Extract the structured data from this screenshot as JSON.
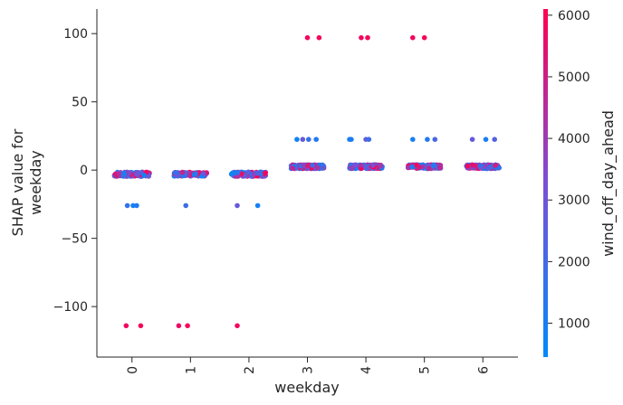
{
  "chart_data": {
    "type": "scatter",
    "title": "",
    "xlabel": "weekday",
    "ylabel_lines": [
      "SHAP value for",
      "weekday"
    ],
    "colorbar_label": "wind_off_day_ahead",
    "xlim": [
      -0.6,
      6.6
    ],
    "ylim": [
      -137,
      118
    ],
    "xticks": [
      0,
      1,
      2,
      3,
      4,
      5,
      6
    ],
    "xtick_labels": [
      "0",
      "1",
      "2",
      "3",
      "4",
      "5",
      "6"
    ],
    "yticks": [
      100,
      50,
      0,
      -50,
      -100
    ],
    "ytick_labels": [
      "100",
      "50",
      "0",
      "−50",
      "−100"
    ],
    "colorbar_ticks": [
      1000,
      2000,
      3000,
      4000,
      5000,
      6000
    ],
    "colorbar_tick_labels": [
      "1000",
      "2000",
      "3000",
      "4000",
      "5000",
      "6000"
    ],
    "colorbar_range": [
      450,
      6100
    ],
    "colormap": [
      "#008afb",
      "#7b4fd5",
      "#ff0052"
    ],
    "grid": false,
    "clusters": [
      {
        "x": 0,
        "y": -3,
        "spread": 0.3,
        "yjitter": 1.6,
        "n": 150
      },
      {
        "x": 1,
        "y": -3,
        "spread": 0.28,
        "yjitter": 1.4,
        "n": 150
      },
      {
        "x": 2,
        "y": -3,
        "spread": 0.3,
        "yjitter": 1.6,
        "n": 150
      },
      {
        "x": 3,
        "y": 2.5,
        "spread": 0.28,
        "yjitter": 1.4,
        "n": 160
      },
      {
        "x": 4,
        "y": 2.5,
        "spread": 0.28,
        "yjitter": 1.4,
        "n": 160
      },
      {
        "x": 5,
        "y": 2.5,
        "spread": 0.28,
        "yjitter": 1.4,
        "n": 160
      },
      {
        "x": 6,
        "y": 2.5,
        "spread": 0.28,
        "yjitter": 1.4,
        "n": 160
      }
    ],
    "points": [
      {
        "x": -0.08,
        "y": -26,
        "c": 1600
      },
      {
        "x": 0.02,
        "y": -26,
        "c": 900
      },
      {
        "x": 0.08,
        "y": -26,
        "c": 1200
      },
      {
        "x": -0.1,
        "y": -114,
        "c": 5800
      },
      {
        "x": 0.15,
        "y": -114,
        "c": 5900
      },
      {
        "x": 0.92,
        "y": -26,
        "c": 1900
      },
      {
        "x": 0.8,
        "y": -114,
        "c": 5700
      },
      {
        "x": 0.95,
        "y": -114,
        "c": 5900
      },
      {
        "x": 1.8,
        "y": -26,
        "c": 2800
      },
      {
        "x": 2.15,
        "y": -26,
        "c": 900
      },
      {
        "x": 1.8,
        "y": -114,
        "c": 5800
      },
      {
        "x": 2.82,
        "y": 22.5,
        "c": 800
      },
      {
        "x": 2.92,
        "y": 22.5,
        "c": 2800
      },
      {
        "x": 3.02,
        "y": 22.5,
        "c": 1700
      },
      {
        "x": 3.15,
        "y": 22.5,
        "c": 1200
      },
      {
        "x": 3.0,
        "y": 97,
        "c": 5800
      },
      {
        "x": 3.2,
        "y": 97,
        "c": 5900
      },
      {
        "x": 3.72,
        "y": 22.5,
        "c": 1000
      },
      {
        "x": 3.75,
        "y": 22.5,
        "c": 1100
      },
      {
        "x": 4.0,
        "y": 22.5,
        "c": 2600
      },
      {
        "x": 4.05,
        "y": 22.5,
        "c": 1900
      },
      {
        "x": 3.92,
        "y": 97,
        "c": 5800
      },
      {
        "x": 4.03,
        "y": 97,
        "c": 5900
      },
      {
        "x": 4.8,
        "y": 22.5,
        "c": 1000
      },
      {
        "x": 5.05,
        "y": 22.5,
        "c": 1200
      },
      {
        "x": 5.18,
        "y": 22.5,
        "c": 2200
      },
      {
        "x": 4.8,
        "y": 97,
        "c": 5800
      },
      {
        "x": 5.0,
        "y": 97,
        "c": 5900
      },
      {
        "x": 5.82,
        "y": 22.5,
        "c": 2800
      },
      {
        "x": 6.05,
        "y": 22.5,
        "c": 1000
      },
      {
        "x": 6.2,
        "y": 22.5,
        "c": 2400
      }
    ]
  }
}
